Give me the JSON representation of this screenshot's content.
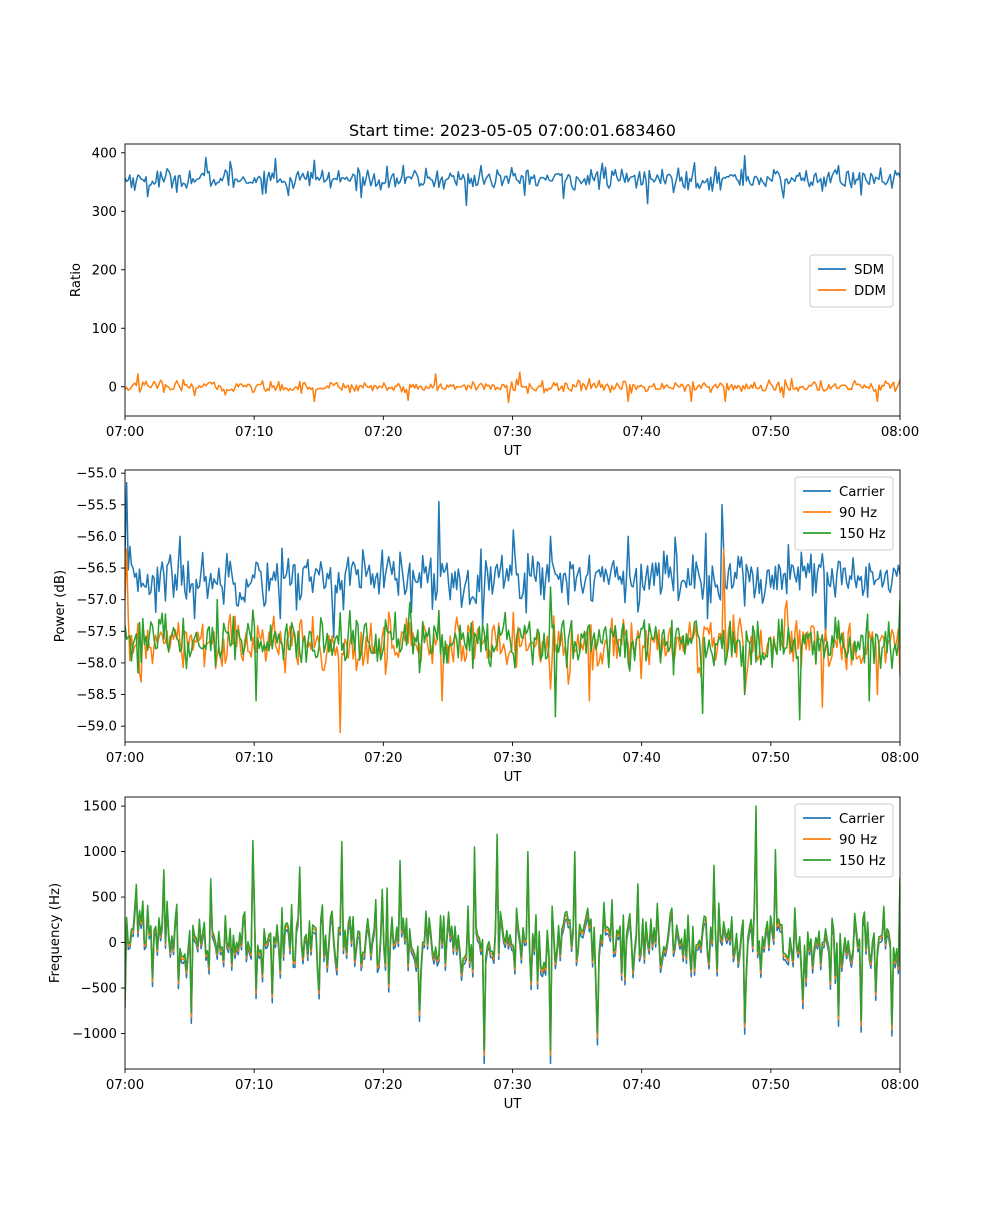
{
  "figure": {
    "title": "Start time: 2023-05-05 07:00:01.683460"
  },
  "chart_data": [
    {
      "type": "line",
      "title": "Start time: 2023-05-05 07:00:01.683460",
      "xlabel": "UT",
      "ylabel": "Ratio",
      "x_range": [
        "07:00",
        "08:00"
      ],
      "ylim": [
        -50,
        415
      ],
      "x_ticks": [
        "07:00",
        "07:10",
        "07:20",
        "07:30",
        "07:40",
        "07:50",
        "08:00"
      ],
      "y_ticks": [
        0,
        100,
        200,
        300,
        400
      ],
      "legend_position": "center-right",
      "grid": false,
      "series": [
        {
          "name": "SDM",
          "color": "#1f77b4",
          "mean": 355,
          "noise": 15,
          "spikes": [
            [
              0.02,
              355
            ],
            [
              0.03,
              325
            ],
            [
              0.06,
              340
            ],
            [
              0.105,
              392
            ],
            [
              0.135,
              385
            ],
            [
              0.195,
              390
            ],
            [
              0.21,
              327
            ],
            [
              0.245,
              387
            ],
            [
              0.265,
              340
            ],
            [
              0.44,
              310
            ],
            [
              0.46,
              378
            ],
            [
              0.565,
              322
            ],
            [
              0.615,
              382
            ],
            [
              0.675,
              313
            ],
            [
              0.735,
              383
            ],
            [
              0.8,
              395
            ],
            [
              0.85,
              323
            ],
            [
              0.92,
              378
            ],
            [
              0.95,
              328
            ],
            [
              0.965,
              360
            ],
            [
              1.0,
              358
            ]
          ]
        },
        {
          "name": "DDM",
          "color": "#ff7f0e",
          "mean": 0,
          "noise": 8,
          "spikes": [
            [
              0.0,
              -5
            ],
            [
              0.017,
              22
            ],
            [
              0.09,
              -15
            ],
            [
              0.13,
              -14
            ],
            [
              0.245,
              -25
            ],
            [
              0.365,
              -23
            ],
            [
              0.4,
              22
            ],
            [
              0.495,
              -27
            ],
            [
              0.51,
              25
            ],
            [
              0.65,
              -25
            ],
            [
              0.73,
              -25
            ],
            [
              0.775,
              -25
            ],
            [
              0.85,
              -18
            ],
            [
              0.97,
              -25
            ],
            [
              1.0,
              12
            ]
          ]
        }
      ]
    },
    {
      "type": "line",
      "xlabel": "UT",
      "ylabel": "Power (dB)",
      "x_range": [
        "07:00",
        "08:00"
      ],
      "ylim": [
        -59.25,
        -54.95
      ],
      "x_ticks": [
        "07:00",
        "07:10",
        "07:20",
        "07:30",
        "07:40",
        "07:50",
        "08:00"
      ],
      "y_ticks": [
        -55.0,
        -55.5,
        -56.0,
        -56.5,
        -57.0,
        -57.5,
        -58.0,
        -58.5,
        -59.0
      ],
      "legend_position": "top-right",
      "grid": false,
      "series": [
        {
          "name": "Carrier",
          "color": "#1f77b4",
          "mean": -56.65,
          "noise": 0.35,
          "spikes": [
            [
              0.0,
              -56.3
            ],
            [
              0.003,
              -55.15
            ],
            [
              0.01,
              -56.5
            ],
            [
              0.04,
              -57.2
            ],
            [
              0.07,
              -56.0
            ],
            [
              0.09,
              -57.3
            ],
            [
              0.15,
              -57.0
            ],
            [
              0.2,
              -57.3
            ],
            [
              0.27,
              -57.6
            ],
            [
              0.31,
              -56.4
            ],
            [
              0.37,
              -57.2
            ],
            [
              0.405,
              -55.45
            ],
            [
              0.42,
              -57.0
            ],
            [
              0.46,
              -56.2
            ],
            [
              0.5,
              -55.9
            ],
            [
              0.55,
              -56.0
            ],
            [
              0.6,
              -56.3
            ],
            [
              0.65,
              -56.0
            ],
            [
              0.7,
              -56.3
            ],
            [
              0.75,
              -55.95
            ],
            [
              0.77,
              -55.5
            ],
            [
              0.8,
              -57.1
            ],
            [
              0.85,
              -56.6
            ],
            [
              0.905,
              -57.65
            ],
            [
              0.93,
              -56.5
            ],
            [
              1.0,
              -56.6
            ]
          ]
        },
        {
          "name": "90 Hz",
          "color": "#ff7f0e",
          "mean": -57.7,
          "noise": 0.35,
          "spikes": [
            [
              0.0,
              -57.0
            ],
            [
              0.003,
              -56.2
            ],
            [
              0.02,
              -58.3
            ],
            [
              0.18,
              -57.7
            ],
            [
              0.278,
              -59.1
            ],
            [
              0.33,
              -57.9
            ],
            [
              0.41,
              -58.6
            ],
            [
              0.5,
              -57.2
            ],
            [
              0.6,
              -58.6
            ],
            [
              0.685,
              -57.5
            ],
            [
              0.76,
              -57.6
            ],
            [
              0.772,
              -56.2
            ],
            [
              0.8,
              -58.5
            ],
            [
              0.9,
              -58.7
            ],
            [
              0.92,
              -57.5
            ],
            [
              0.97,
              -58.5
            ],
            [
              1.0,
              -58.2
            ]
          ]
        },
        {
          "name": "150 Hz",
          "color": "#2ca02c",
          "mean": -57.65,
          "noise": 0.35,
          "spikes": [
            [
              0.0,
              -57.4
            ],
            [
              0.03,
              -57.8
            ],
            [
              0.12,
              -57.0
            ],
            [
              0.17,
              -58.6
            ],
            [
              0.28,
              -57.8
            ],
            [
              0.42,
              -57.7
            ],
            [
              0.49,
              -57.2
            ],
            [
              0.55,
              -56.8
            ],
            [
              0.555,
              -58.85
            ],
            [
              0.6,
              -57.4
            ],
            [
              0.65,
              -58.0
            ],
            [
              0.69,
              -58.0
            ],
            [
              0.745,
              -58.8
            ],
            [
              0.8,
              -58.5
            ],
            [
              0.87,
              -58.9
            ],
            [
              0.96,
              -58.6
            ],
            [
              1.0,
              -57.0
            ]
          ]
        }
      ]
    },
    {
      "type": "line",
      "xlabel": "UT",
      "ylabel": "Frequency (Hz)",
      "x_range": [
        "07:00",
        "08:00"
      ],
      "ylim": [
        -1390,
        1600
      ],
      "x_ticks": [
        "07:00",
        "07:10",
        "07:20",
        "07:30",
        "07:40",
        "07:50",
        "08:00"
      ],
      "y_ticks": [
        -1000,
        -500,
        0,
        500,
        1000,
        1500
      ],
      "legend_position": "top-right",
      "grid": false,
      "series": [
        {
          "name": "Carrier",
          "color": "#1f77b4",
          "offset": -60
        },
        {
          "name": "90 Hz",
          "color": "#ff7f0e",
          "offset": -25
        },
        {
          "name": "150 Hz",
          "color": "#2ca02c",
          "offset": 0,
          "mean": 50,
          "noise": 330,
          "spikes": [
            [
              0.0,
              -620
            ],
            [
              0.015,
              640
            ],
            [
              0.05,
              800
            ],
            [
              0.085,
              -770
            ],
            [
              0.11,
              700
            ],
            [
              0.165,
              1120
            ],
            [
              0.19,
              -560
            ],
            [
              0.225,
              830
            ],
            [
              0.25,
              -520
            ],
            [
              0.28,
              1110
            ],
            [
              0.355,
              900
            ],
            [
              0.38,
              -750
            ],
            [
              0.45,
              1050
            ],
            [
              0.463,
              -1180
            ],
            [
              0.48,
              1190
            ],
            [
              0.52,
              1000
            ],
            [
              0.55,
              -1180
            ],
            [
              0.58,
              1000
            ],
            [
              0.61,
              -990
            ],
            [
              0.76,
              850
            ],
            [
              0.8,
              -880
            ],
            [
              0.815,
              1500
            ],
            [
              0.84,
              1020
            ],
            [
              0.875,
              -620
            ],
            [
              0.92,
              -800
            ],
            [
              0.95,
              -860
            ],
            [
              0.99,
              -900
            ],
            [
              1.0,
              720
            ]
          ]
        }
      ]
    }
  ]
}
